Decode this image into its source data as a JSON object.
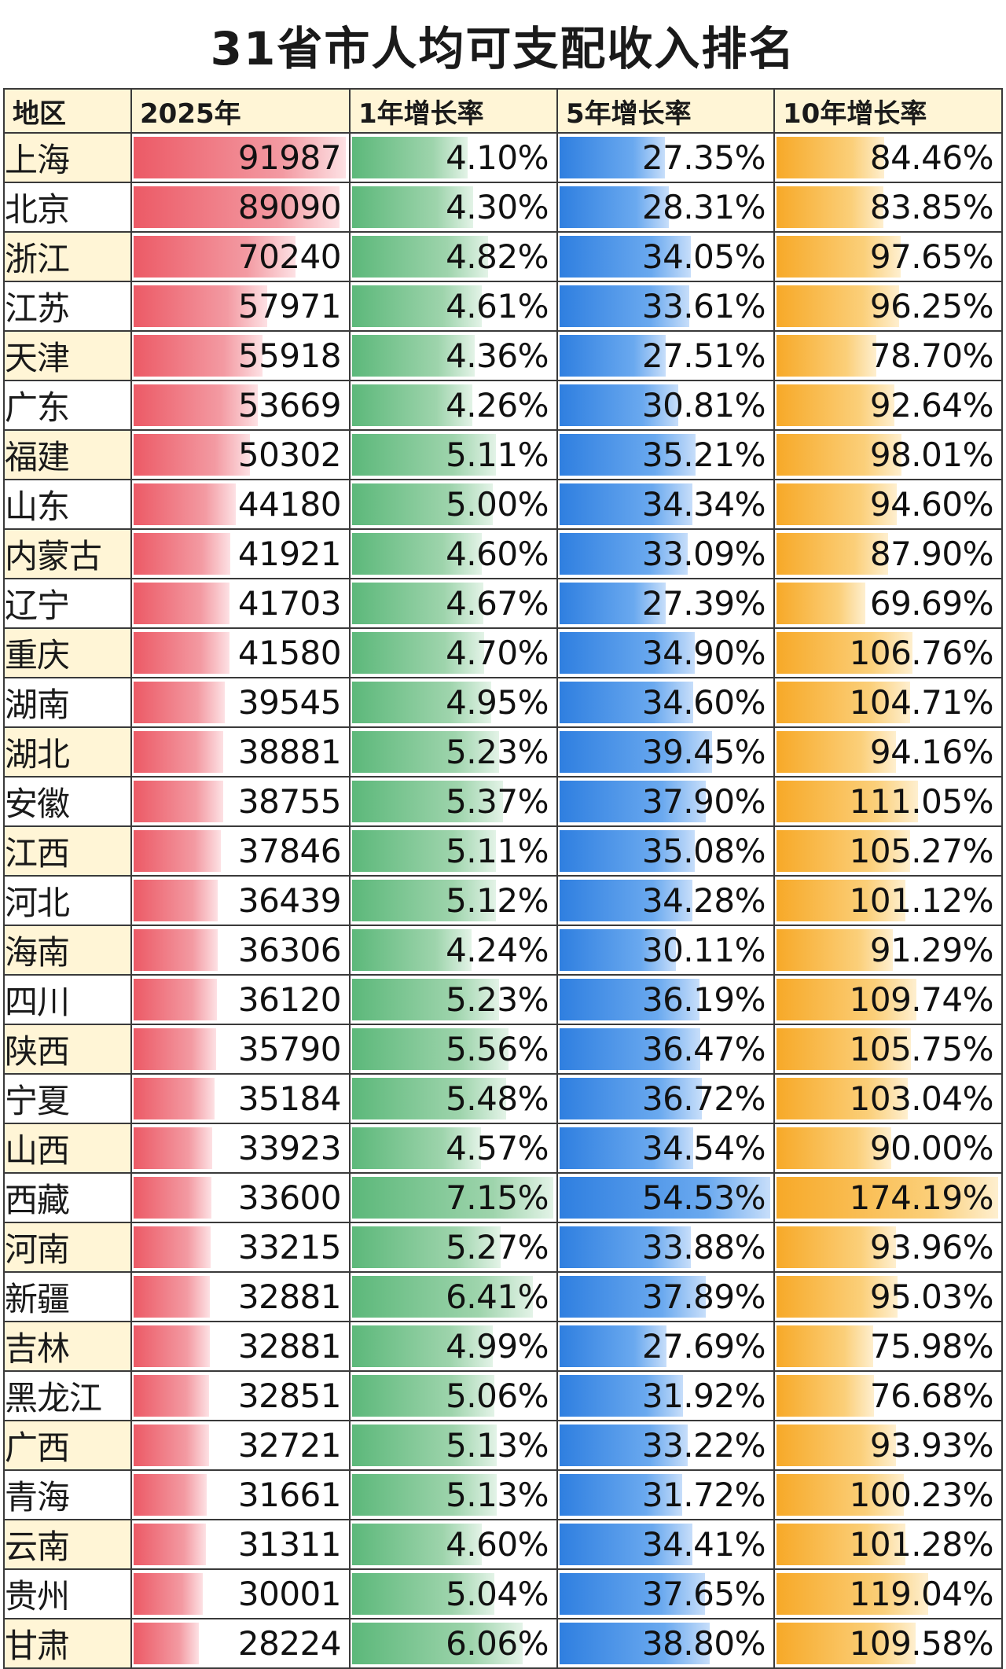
{
  "title": "31省市人均可支配收入排名",
  "colors": {
    "header_bg": "#fff5d6",
    "alt_row_bg": "#fff5d6",
    "income_bar": "#ec5a66",
    "growth1_bar": "#5cb87a",
    "growth5_bar": "#2f7fe0",
    "growth10_bar": "#f7a928"
  },
  "chart_data": {
    "type": "table",
    "title": "31省市人均可支配收入排名",
    "columns": [
      "地区",
      "2025年",
      "1年增长率",
      "5年增长率",
      "10年增长率"
    ],
    "bar_scales": {
      "income_max": 91987,
      "growth1_max": 7.15,
      "growth5_max": 54.53,
      "growth10_max": 174.19
    },
    "rows": [
      {
        "region": "上海",
        "income": 91987,
        "income_text": "91987",
        "g1": 4.1,
        "g1_text": "4.10%",
        "g5": 27.35,
        "g5_text": "27.35%",
        "g10": 84.46,
        "g10_text": "84.46%"
      },
      {
        "region": "北京",
        "income": 89090,
        "income_text": "89090",
        "g1": 4.3,
        "g1_text": "4.30%",
        "g5": 28.31,
        "g5_text": "28.31%",
        "g10": 83.85,
        "g10_text": "83.85%"
      },
      {
        "region": "浙江",
        "income": 70240,
        "income_text": "70240",
        "g1": 4.82,
        "g1_text": "4.82%",
        "g5": 34.05,
        "g5_text": "34.05%",
        "g10": 97.65,
        "g10_text": "97.65%"
      },
      {
        "region": "江苏",
        "income": 57971,
        "income_text": "57971",
        "g1": 4.61,
        "g1_text": "4.61%",
        "g5": 33.61,
        "g5_text": "33.61%",
        "g10": 96.25,
        "g10_text": "96.25%"
      },
      {
        "region": "天津",
        "income": 55918,
        "income_text": "55918",
        "g1": 4.36,
        "g1_text": "4.36%",
        "g5": 27.51,
        "g5_text": "27.51%",
        "g10": 78.7,
        "g10_text": "78.70%"
      },
      {
        "region": "广东",
        "income": 53669,
        "income_text": "53669",
        "g1": 4.26,
        "g1_text": "4.26%",
        "g5": 30.81,
        "g5_text": "30.81%",
        "g10": 92.64,
        "g10_text": "92.64%"
      },
      {
        "region": "福建",
        "income": 50302,
        "income_text": "50302",
        "g1": 5.11,
        "g1_text": "5.11%",
        "g5": 35.21,
        "g5_text": "35.21%",
        "g10": 98.01,
        "g10_text": "98.01%"
      },
      {
        "region": "山东",
        "income": 44180,
        "income_text": "44180",
        "g1": 5.0,
        "g1_text": "5.00%",
        "g5": 34.34,
        "g5_text": "34.34%",
        "g10": 94.6,
        "g10_text": "94.60%"
      },
      {
        "region": "内蒙古",
        "income": 41921,
        "income_text": "41921",
        "g1": 4.6,
        "g1_text": "4.60%",
        "g5": 33.09,
        "g5_text": "33.09%",
        "g10": 87.9,
        "g10_text": "87.90%"
      },
      {
        "region": "辽宁",
        "income": 41703,
        "income_text": "41703",
        "g1": 4.67,
        "g1_text": "4.67%",
        "g5": 27.39,
        "g5_text": "27.39%",
        "g10": 69.69,
        "g10_text": "69.69%"
      },
      {
        "region": "重庆",
        "income": 41580,
        "income_text": "41580",
        "g1": 4.7,
        "g1_text": "4.70%",
        "g5": 34.9,
        "g5_text": "34.90%",
        "g10": 106.76,
        "g10_text": "106.76%"
      },
      {
        "region": "湖南",
        "income": 39545,
        "income_text": "39545",
        "g1": 4.95,
        "g1_text": "4.95%",
        "g5": 34.6,
        "g5_text": "34.60%",
        "g10": 104.71,
        "g10_text": "104.71%"
      },
      {
        "region": "湖北",
        "income": 38881,
        "income_text": "38881",
        "g1": 5.23,
        "g1_text": "5.23%",
        "g5": 39.45,
        "g5_text": "39.45%",
        "g10": 94.16,
        "g10_text": "94.16%"
      },
      {
        "region": "安徽",
        "income": 38755,
        "income_text": "38755",
        "g1": 5.37,
        "g1_text": "5.37%",
        "g5": 37.9,
        "g5_text": "37.90%",
        "g10": 111.05,
        "g10_text": "111.05%"
      },
      {
        "region": "江西",
        "income": 37846,
        "income_text": "37846",
        "g1": 5.11,
        "g1_text": "5.11%",
        "g5": 35.08,
        "g5_text": "35.08%",
        "g10": 105.27,
        "g10_text": "105.27%"
      },
      {
        "region": "河北",
        "income": 36439,
        "income_text": "36439",
        "g1": 5.12,
        "g1_text": "5.12%",
        "g5": 34.28,
        "g5_text": "34.28%",
        "g10": 101.12,
        "g10_text": "101.12%"
      },
      {
        "region": "海南",
        "income": 36306,
        "income_text": "36306",
        "g1": 4.24,
        "g1_text": "4.24%",
        "g5": 30.11,
        "g5_text": "30.11%",
        "g10": 91.29,
        "g10_text": "91.29%"
      },
      {
        "region": "四川",
        "income": 36120,
        "income_text": "36120",
        "g1": 5.23,
        "g1_text": "5.23%",
        "g5": 36.19,
        "g5_text": "36.19%",
        "g10": 109.74,
        "g10_text": "109.74%"
      },
      {
        "region": "陕西",
        "income": 35790,
        "income_text": "35790",
        "g1": 5.56,
        "g1_text": "5.56%",
        "g5": 36.47,
        "g5_text": "36.47%",
        "g10": 105.75,
        "g10_text": "105.75%"
      },
      {
        "region": "宁夏",
        "income": 35184,
        "income_text": "35184",
        "g1": 5.48,
        "g1_text": "5.48%",
        "g5": 36.72,
        "g5_text": "36.72%",
        "g10": 103.04,
        "g10_text": "103.04%"
      },
      {
        "region": "山西",
        "income": 33923,
        "income_text": "33923",
        "g1": 4.57,
        "g1_text": "4.57%",
        "g5": 34.54,
        "g5_text": "34.54%",
        "g10": 90.0,
        "g10_text": "90.00%"
      },
      {
        "region": "西藏",
        "income": 33600,
        "income_text": "33600",
        "g1": 7.15,
        "g1_text": "7.15%",
        "g5": 54.53,
        "g5_text": "54.53%",
        "g10": 174.19,
        "g10_text": "174.19%"
      },
      {
        "region": "河南",
        "income": 33215,
        "income_text": "33215",
        "g1": 5.27,
        "g1_text": "5.27%",
        "g5": 33.88,
        "g5_text": "33.88%",
        "g10": 93.96,
        "g10_text": "93.96%"
      },
      {
        "region": "新疆",
        "income": 32881,
        "income_text": "32881",
        "g1": 6.41,
        "g1_text": "6.41%",
        "g5": 37.89,
        "g5_text": "37.89%",
        "g10": 95.03,
        "g10_text": "95.03%"
      },
      {
        "region": "吉林",
        "income": 32881,
        "income_text": "32881",
        "g1": 4.99,
        "g1_text": "4.99%",
        "g5": 27.69,
        "g5_text": "27.69%",
        "g10": 75.98,
        "g10_text": "75.98%"
      },
      {
        "region": "黑龙江",
        "income": 32851,
        "income_text": "32851",
        "g1": 5.06,
        "g1_text": "5.06%",
        "g5": 31.92,
        "g5_text": "31.92%",
        "g10": 76.68,
        "g10_text": "76.68%"
      },
      {
        "region": "广西",
        "income": 32721,
        "income_text": "32721",
        "g1": 5.13,
        "g1_text": "5.13%",
        "g5": 33.22,
        "g5_text": "33.22%",
        "g10": 93.93,
        "g10_text": "93.93%"
      },
      {
        "region": "青海",
        "income": 31661,
        "income_text": "31661",
        "g1": 5.13,
        "g1_text": "5.13%",
        "g5": 31.72,
        "g5_text": "31.72%",
        "g10": 100.23,
        "g10_text": "100.23%"
      },
      {
        "region": "云南",
        "income": 31311,
        "income_text": "31311",
        "g1": 4.6,
        "g1_text": "4.60%",
        "g5": 34.41,
        "g5_text": "34.41%",
        "g10": 101.28,
        "g10_text": "101.28%"
      },
      {
        "region": "贵州",
        "income": 30001,
        "income_text": "30001",
        "g1": 5.04,
        "g1_text": "5.04%",
        "g5": 37.65,
        "g5_text": "37.65%",
        "g10": 119.04,
        "g10_text": "119.04%"
      },
      {
        "region": "甘肃",
        "income": 28224,
        "income_text": "28224",
        "g1": 6.06,
        "g1_text": "6.06%",
        "g5": 38.8,
        "g5_text": "38.80%",
        "g10": 109.58,
        "g10_text": "109.58%"
      }
    ]
  }
}
